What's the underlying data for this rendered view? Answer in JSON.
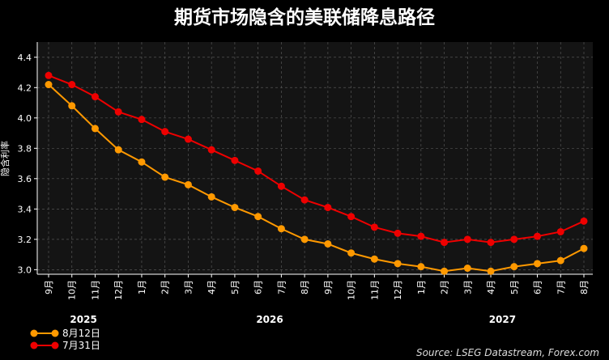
{
  "chart_data": {
    "type": "line",
    "title": "期货市场隐含的美联储降息路径",
    "ylabel": "隐含利率",
    "xlabel": "",
    "ylim": [
      2.97,
      4.5
    ],
    "yticks": [
      "3.0",
      "3.2",
      "3.4",
      "3.6",
      "3.8",
      "4.0",
      "4.2",
      "4.4"
    ],
    "categories": [
      "9月",
      "10月",
      "11月",
      "12月",
      "1月",
      "2月",
      "3月",
      "4月",
      "5月",
      "6月",
      "7月",
      "8月",
      "9月",
      "10月",
      "11月",
      "12月",
      "1月",
      "2月",
      "3月",
      "4月",
      "5月",
      "6月",
      "7月",
      "8月"
    ],
    "year_labels": [
      {
        "label": "2025",
        "center_index": 1.5
      },
      {
        "label": "2026",
        "center_index": 9.5
      },
      {
        "label": "2027",
        "center_index": 19.5
      }
    ],
    "series": [
      {
        "name": "8月12日",
        "color": "#ff9900",
        "values": [
          4.22,
          4.08,
          3.93,
          3.79,
          3.71,
          3.61,
          3.56,
          3.48,
          3.41,
          3.35,
          3.27,
          3.2,
          3.17,
          3.11,
          3.07,
          3.04,
          3.02,
          2.99,
          3.01,
          2.99,
          3.02,
          3.04,
          3.06,
          3.14
        ]
      },
      {
        "name": "7月31日",
        "color": "#ee0000",
        "values": [
          4.28,
          4.22,
          4.14,
          4.04,
          3.99,
          3.91,
          3.86,
          3.79,
          3.72,
          3.65,
          3.55,
          3.46,
          3.41,
          3.35,
          3.28,
          3.24,
          3.22,
          3.18,
          3.2,
          3.18,
          3.2,
          3.22,
          3.25,
          3.32
        ]
      }
    ],
    "grid": true,
    "legend_position": "bottom-left",
    "source": "Source: LSEG Datastream, Forex.com"
  }
}
